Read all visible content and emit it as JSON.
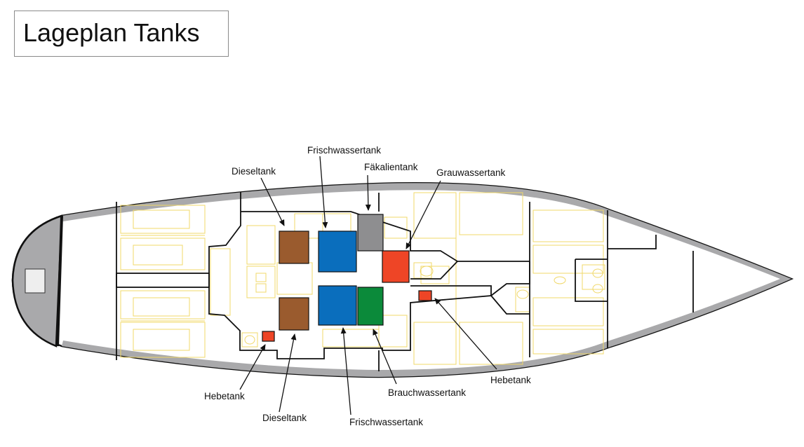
{
  "title": "Lageplan Tanks",
  "colors": {
    "diesel": "#9a5b2e",
    "fresh_water": "#0a6ebd",
    "sewage": "#8e8e90",
    "grey_water": "#ee4526",
    "process_water": "#0b8a3a",
    "bilge": "#ee4526",
    "hull_outline": "#111111",
    "hull_band": "#a9a9ab",
    "interior_lines": "#f0d86a"
  },
  "labels": {
    "frischwassertank_top": "Frischwassertank",
    "dieseltank_top": "Dieseltank",
    "faekalientank": "Fäkalientank",
    "grauwassertank": "Grauwassertank",
    "hebetank_right": "Hebetank",
    "brauchwassertank": "Brauchwassertank",
    "hebetank_left": "Hebetank",
    "dieseltank_bottom": "Dieseltank",
    "frischwassertank_bottom": "Frischwassertank"
  }
}
